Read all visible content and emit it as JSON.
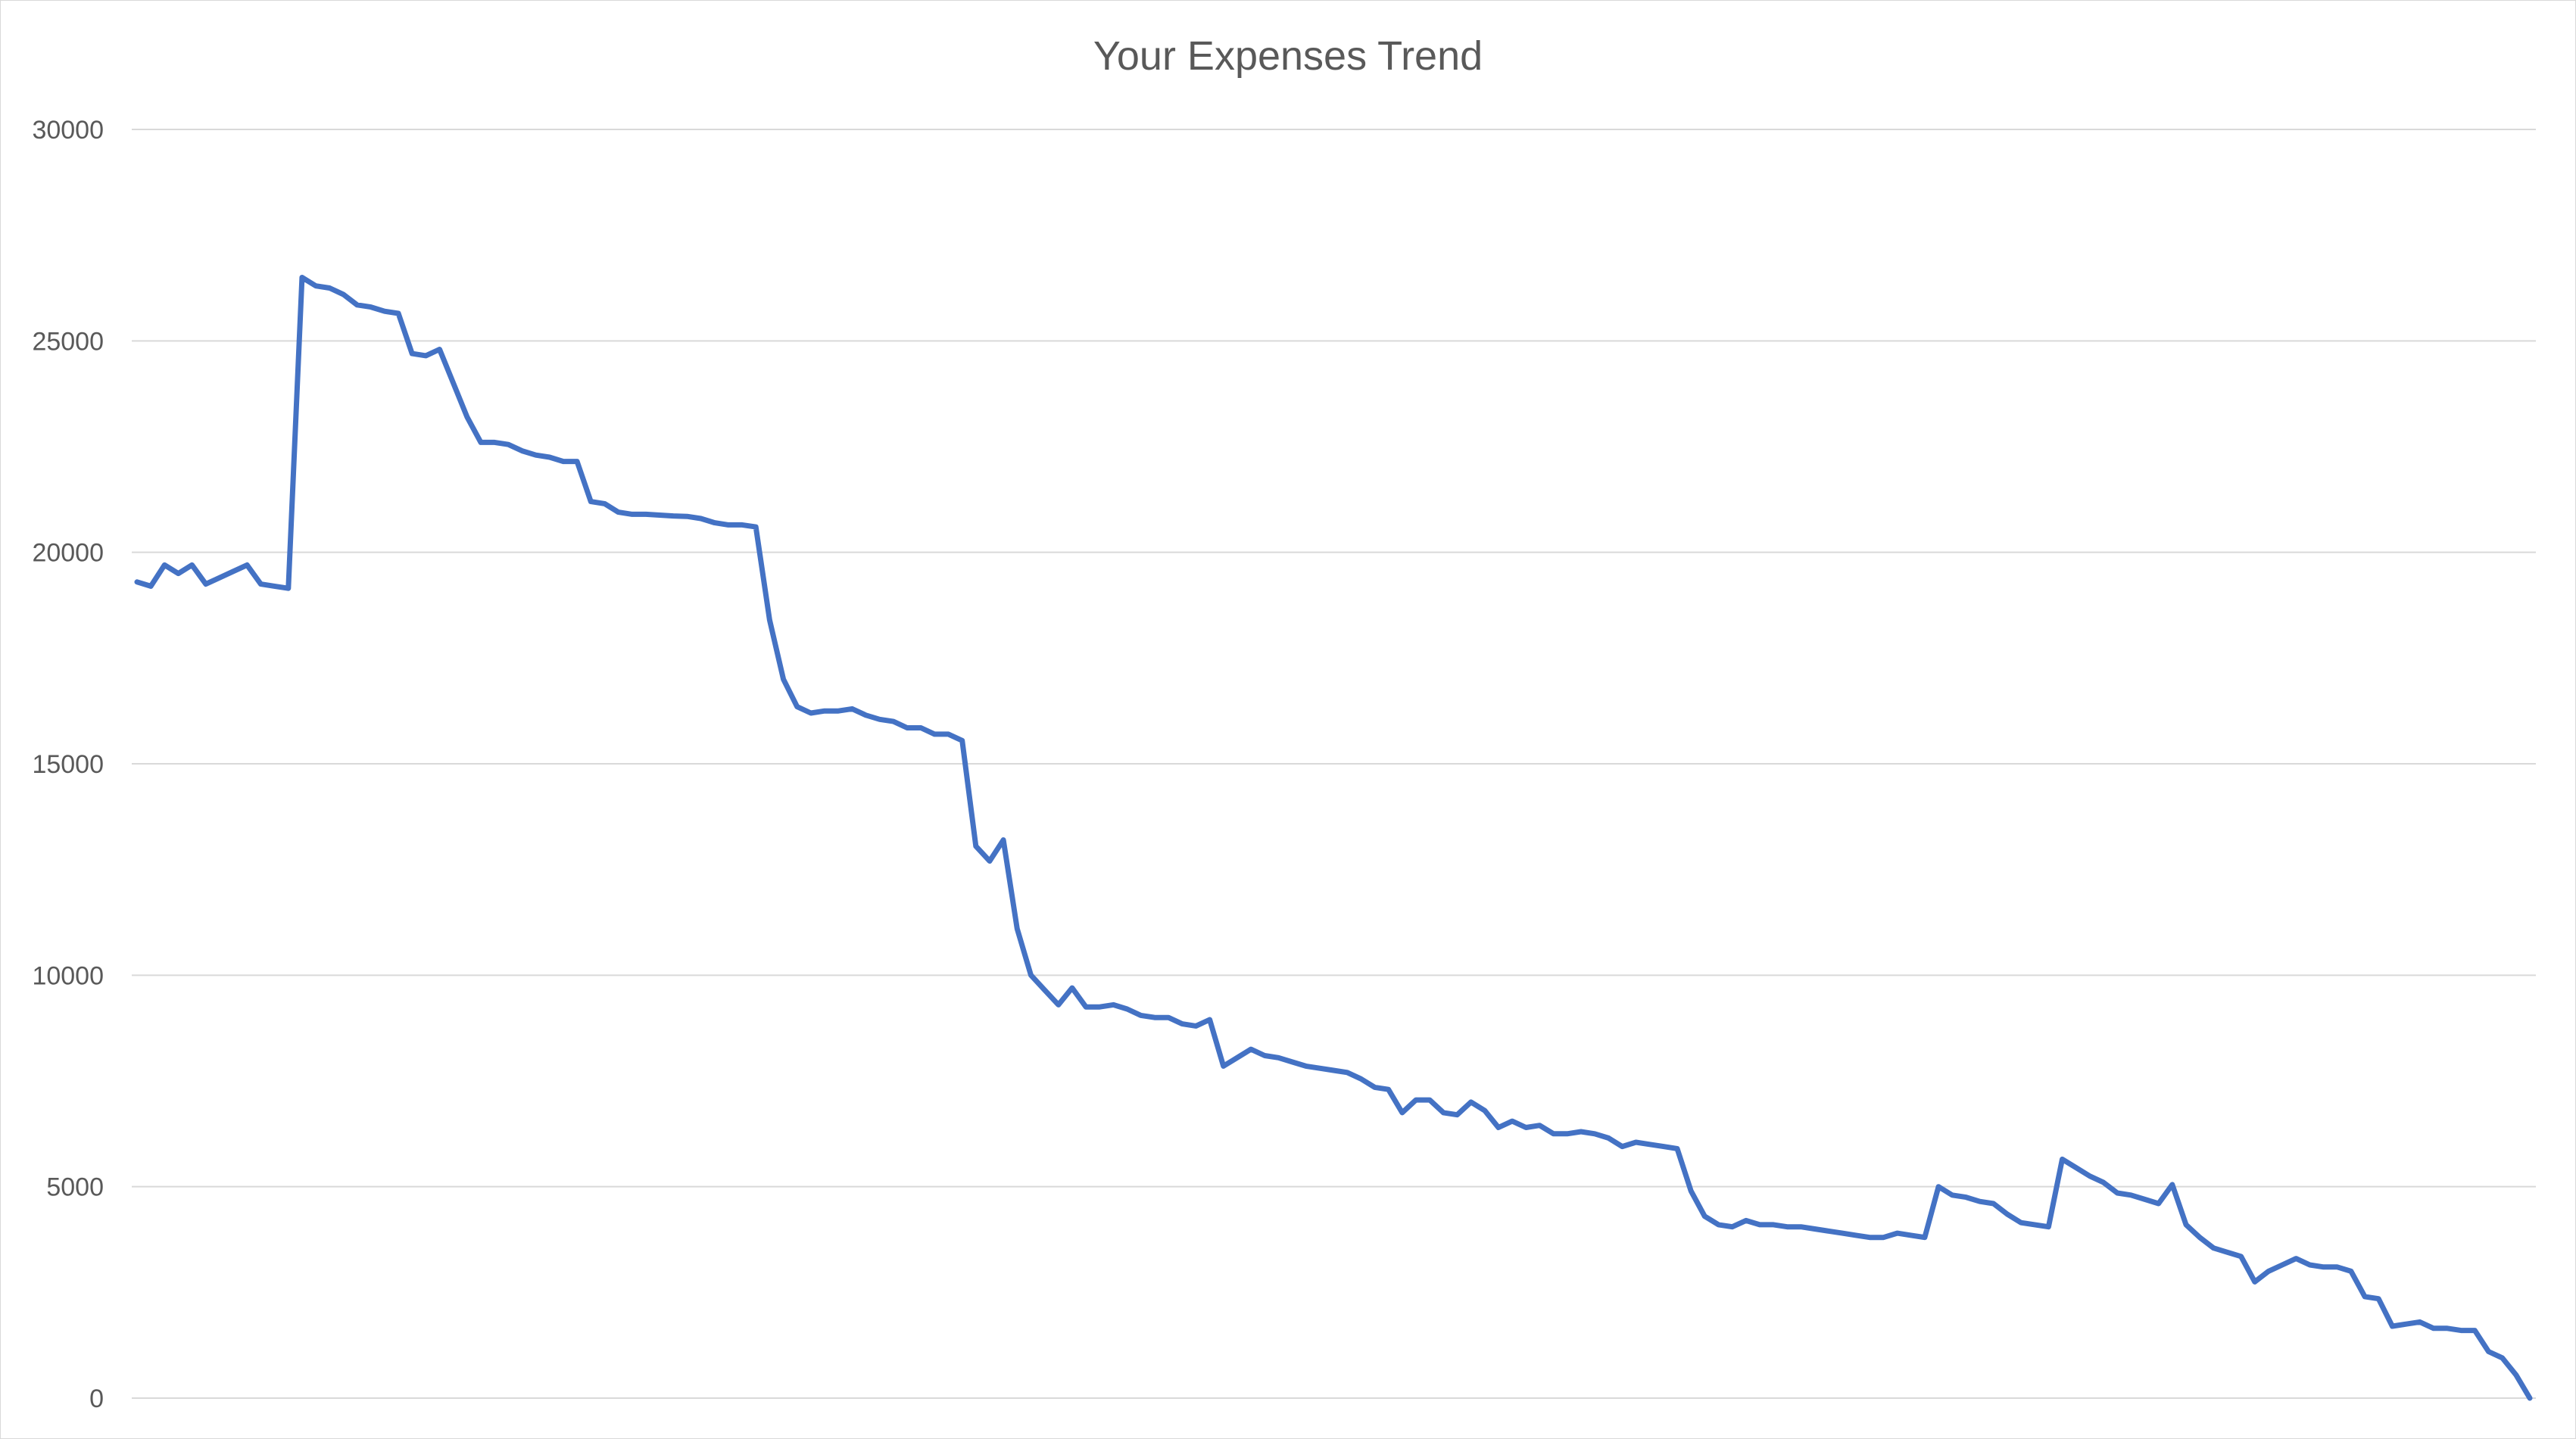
{
  "chart_data": {
    "type": "line",
    "title": "Your Expenses Trend",
    "xlabel": "",
    "ylabel": "",
    "ylim": [
      0,
      30000
    ],
    "yticks": [
      0,
      5000,
      10000,
      15000,
      20000,
      25000,
      30000
    ],
    "grid": true,
    "legend": "none",
    "colors": {
      "line": "#4472c4",
      "grid": "#d9d9d9",
      "text": "#595959"
    },
    "series": [
      {
        "values": [
          19300,
          19200,
          19700,
          19500,
          19700,
          19250,
          19400,
          19550,
          19700,
          19250,
          19200,
          19150,
          26500,
          26300,
          26250,
          26100,
          25850,
          25800,
          25700,
          25650,
          24700,
          24650,
          24800,
          24000,
          23200,
          22600,
          22600,
          22550,
          22400,
          22300,
          22250,
          22150,
          22150,
          21200,
          21150,
          20950,
          20900,
          20900,
          20880,
          20860,
          20850,
          20800,
          20700,
          20650,
          20650,
          20600,
          18400,
          17000,
          16350,
          16200,
          16250,
          16250,
          16300,
          16150,
          16050,
          16000,
          15850,
          15850,
          15700,
          15700,
          15550,
          13050,
          12700,
          13200,
          11100,
          10000,
          9650,
          9300,
          9700,
          9250,
          9250,
          9300,
          9200,
          9050,
          9000,
          9000,
          8850,
          8800,
          8950,
          7850,
          8050,
          8250,
          8100,
          8050,
          7950,
          7850,
          7800,
          7750,
          7700,
          7550,
          7350,
          7300,
          6750,
          7050,
          7050,
          6750,
          6700,
          7000,
          6800,
          6400,
          6550,
          6400,
          6450,
          6250,
          6250,
          6300,
          6250,
          6150,
          5950,
          6050,
          6000,
          5950,
          5900,
          4900,
          4300,
          4100,
          4050,
          4200,
          4100,
          4100,
          4050,
          4050,
          4000,
          3950,
          3900,
          3850,
          3800,
          3800,
          3900,
          3850,
          3800,
          5000,
          4800,
          4750,
          4650,
          4600,
          4350,
          4150,
          4100,
          4050,
          5650,
          5450,
          5250,
          5100,
          4850,
          4800,
          4700,
          4600,
          5050,
          4100,
          3800,
          3550,
          3450,
          3350,
          2750,
          3000,
          3150,
          3300,
          3150,
          3100,
          3100,
          3000,
          2400,
          2350,
          1700,
          1750,
          1800,
          1650,
          1650,
          1600,
          1600,
          1100,
          950,
          550,
          0
        ]
      }
    ]
  }
}
